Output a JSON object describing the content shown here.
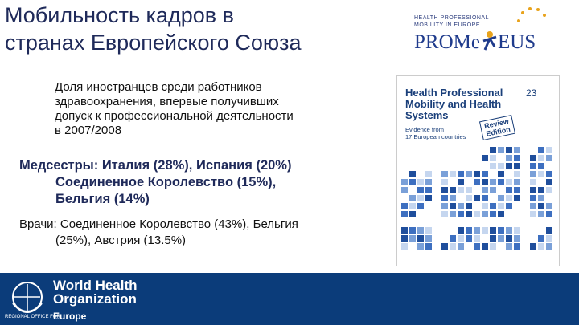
{
  "slide": {
    "title": [
      "Мобильность кадров в",
      "странах Европейского Союза"
    ],
    "logo": {
      "top": [
        "HEALTH PROFESSIONAL",
        "MOBILITY IN EUROPE"
      ],
      "left": "PROMe",
      "right": "EUS"
    },
    "intro": [
      "Доля иностранцев среди работников",
      "здравоохранения, впервые получивших",
      "допуск к профессиональной деятельности",
      "в 2007/2008"
    ],
    "nurses": [
      "Медсестры:  Италия (28%), Испания (20%)",
      "Соединенное Королевство (15%),",
      "Бельгия (14%)"
    ],
    "doctors": [
      "Врачи:  Соединенное Королевство  (43%), Бельгия",
      "(25%), Австрия (13.5%)"
    ],
    "book": {
      "title": [
        "Health Professional",
        "Mobility and Health",
        "Systems"
      ],
      "subtitle": [
        "Evidence from",
        "17 European countries"
      ],
      "stamp": [
        "Review",
        "Edition"
      ],
      "number": "23"
    },
    "footer": {
      "org": [
        "World Health",
        "Organization"
      ],
      "office": "REGIONAL OFFICE FOR",
      "region": "Europe"
    }
  }
}
